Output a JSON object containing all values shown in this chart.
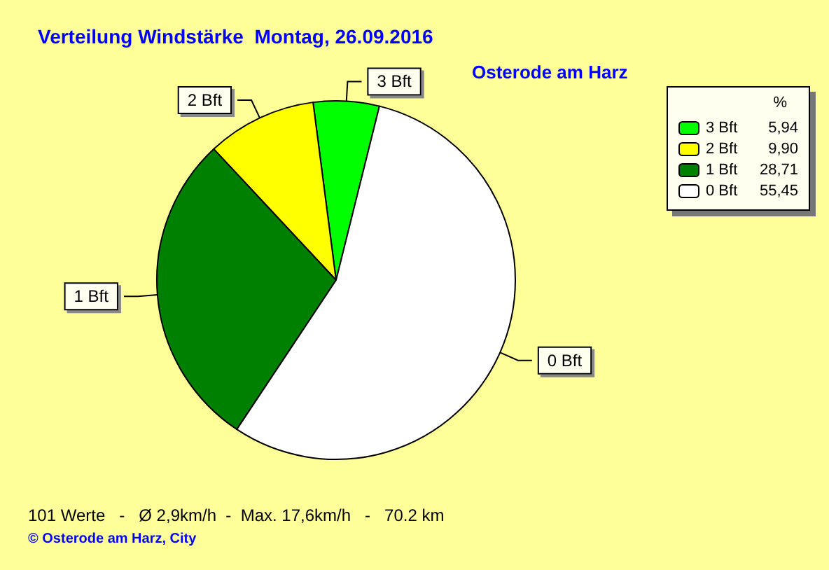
{
  "chart_data": {
    "type": "pie",
    "title": "Verteilung Windstärke  Montag, 26.09.2016",
    "subtitle": "Osterode am Harz",
    "categories": [
      "3 Bft",
      "2 Bft",
      "1 Bft",
      "0 Bft"
    ],
    "values": [
      5.94,
      9.9,
      28.71,
      55.45
    ],
    "colors": [
      "#00ff00",
      "#ffff00",
      "#008000",
      "#ffffff"
    ],
    "value_labels": [
      "5,94",
      "9,90",
      "28,71",
      "55,45"
    ],
    "legend": "top right",
    "legend_title": "%",
    "annotations": [
      "101 Werte   -   Ø 2,9km/h  -  Max. 17,6km/h   -   70.2 km",
      "© Osterode am Harz, City"
    ]
  }
}
